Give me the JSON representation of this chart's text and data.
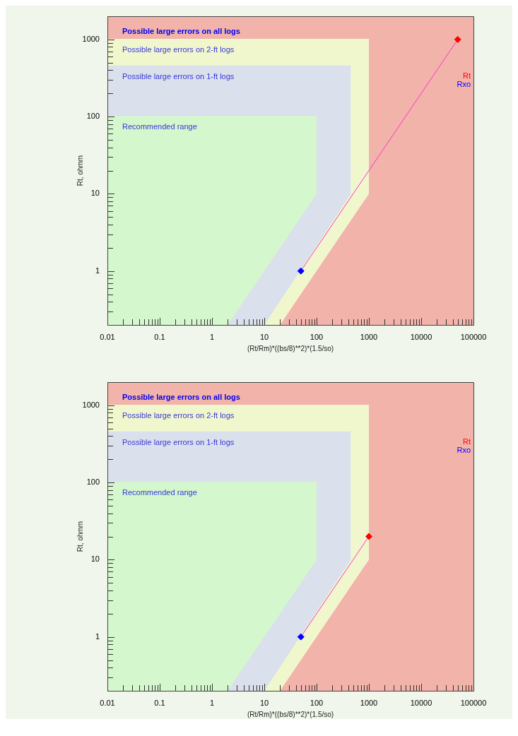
{
  "chart_data": [
    {
      "type": "area",
      "xlabel": "(Rt/Rm)*((bs/8)**2)*(1.5/so)",
      "ylabel": "Rt, ohmm",
      "log": "xy",
      "legend": "top right",
      "marker": "none",
      "xlim": [
        0.01,
        100000
      ],
      "ylim": [
        0.2,
        2000
      ],
      "xticks": [
        0.01,
        {
          "value": 0.02,
          "label": null
        },
        {
          "value": 0.03,
          "label": null
        },
        {
          "value": 0.04,
          "label": null
        },
        {
          "value": 0.05,
          "label": null
        },
        {
          "value": 0.06,
          "label": null
        },
        {
          "value": 0.07,
          "label": null
        },
        {
          "value": 0.08,
          "label": null
        },
        {
          "value": 0.09,
          "label": null
        },
        0.1,
        {
          "value": 0.2,
          "label": null
        },
        {
          "value": 0.3,
          "label": null
        },
        {
          "value": 0.4,
          "label": null
        },
        {
          "value": 0.5,
          "label": null
        },
        {
          "value": 0.6,
          "label": null
        },
        {
          "value": 0.7,
          "label": null
        },
        {
          "value": 0.8,
          "label": null
        },
        {
          "value": 0.9,
          "label": null
        },
        1,
        {
          "value": 2,
          "label": null
        },
        {
          "value": 3,
          "label": null
        },
        {
          "value": 4,
          "label": null
        },
        {
          "value": 5,
          "label": null
        },
        {
          "value": 6,
          "label": null
        },
        {
          "value": 7,
          "label": null
        },
        {
          "value": 8,
          "label": null
        },
        {
          "value": 9,
          "label": null
        },
        10,
        {
          "value": 20,
          "label": null
        },
        {
          "value": 30,
          "label": null
        },
        {
          "value": 40,
          "label": null
        },
        {
          "value": 50,
          "label": null
        },
        {
          "value": 60,
          "label": null
        },
        {
          "value": 70,
          "label": null
        },
        {
          "value": 80,
          "label": null
        },
        {
          "value": 90,
          "label": null
        },
        100,
        {
          "value": 200,
          "label": null
        },
        {
          "value": 300,
          "label": null
        },
        {
          "value": 400,
          "label": null
        },
        {
          "value": 500,
          "label": null
        },
        {
          "value": 600,
          "label": null
        },
        {
          "value": 700,
          "label": null
        },
        {
          "value": 800,
          "label": null
        },
        {
          "value": 900,
          "label": null
        },
        1000,
        {
          "value": 2000,
          "label": null
        },
        {
          "value": 3000,
          "label": null
        },
        {
          "value": 4000,
          "label": null
        },
        {
          "value": 5000,
          "label": null
        },
        {
          "value": 6000,
          "label": null
        },
        {
          "value": 7000,
          "label": null
        },
        {
          "value": 8000,
          "label": null
        },
        {
          "value": 9000,
          "label": null
        },
        10000,
        {
          "value": 20000,
          "label": null
        },
        {
          "value": 30000,
          "label": null
        },
        {
          "value": 40000,
          "label": null
        },
        {
          "value": 50000,
          "label": null
        },
        {
          "value": 60000,
          "label": null
        },
        {
          "value": 70000,
          "label": null
        },
        {
          "value": 80000,
          "label": null
        },
        {
          "value": 90000,
          "label": null
        },
        100000
      ],
      "yticks": [
        {
          "value": 0.2,
          "label": null
        },
        {
          "value": 0.3,
          "label": null
        },
        {
          "value": 0.4,
          "label": null
        },
        {
          "value": 0.5,
          "label": null
        },
        {
          "value": 0.6,
          "label": null
        },
        {
          "value": 0.7,
          "label": null
        },
        {
          "value": 0.8,
          "label": null
        },
        {
          "value": 0.9,
          "label": null
        },
        1,
        {
          "value": 2,
          "label": null
        },
        {
          "value": 3,
          "label": null
        },
        {
          "value": 4,
          "label": null
        },
        {
          "value": 5,
          "label": null
        },
        {
          "value": 6,
          "label": null
        },
        {
          "value": 7,
          "label": null
        },
        {
          "value": 8,
          "label": null
        },
        {
          "value": 9,
          "label": null
        },
        10,
        {
          "value": 20,
          "label": null
        },
        {
          "value": 30,
          "label": null
        },
        {
          "value": 40,
          "label": null
        },
        {
          "value": 50,
          "label": null
        },
        {
          "value": 60,
          "label": null
        },
        {
          "value": 70,
          "label": null
        },
        {
          "value": 80,
          "label": null
        },
        {
          "value": 90,
          "label": null
        },
        100,
        {
          "value": 200,
          "label": null
        },
        {
          "value": 300,
          "label": null
        },
        {
          "value": 400,
          "label": null
        },
        {
          "value": 500,
          "label": null
        },
        {
          "value": 600,
          "label": null
        },
        {
          "value": 700,
          "label": null
        },
        {
          "value": 800,
          "label": null
        },
        {
          "value": 900,
          "label": null
        },
        1000,
        {
          "value": 2000,
          "label": null
        }
      ],
      "series": [
        {
          "name": "Rt",
          "type": "scatter",
          "marker": "diamond",
          "color": "#ff0000",
          "x": [
            50000
          ],
          "values": [
            1000
          ]
        },
        {
          "name": "Rxo",
          "type": "scatter",
          "marker": "diamond",
          "color": "#0000ff",
          "x": [
            50
          ],
          "values": [
            1
          ]
        },
        {
          "type": "line",
          "color": "#ff33cc",
          "x": [
            50,
            50000
          ],
          "values": [
            1,
            1000
          ]
        },
        {
          "name": "Recommended range",
          "type": "line",
          "color": "#d4f7cd",
          "x": [
            0.01,
            2,
            100
          ],
          "values": [
            100,
            100,
            100
          ],
          "upper": [
            100,
            100,
            100
          ],
          "lower": [
            0.2,
            0.2,
            10
          ]
        },
        {
          "name": "Possible large errors on 1-ft logs",
          "type": "line",
          "color": "#dae0ec",
          "x": [
            0.01,
            10,
            450
          ],
          "values": [
            450,
            450,
            450
          ],
          "upper": [
            450,
            450,
            450
          ],
          "lower": [
            0.2,
            0.2,
            10
          ]
        },
        {
          "name": "Possible large errors on 2-ft logs",
          "type": "line",
          "color": "#f1f7cd",
          "x": [
            0.01,
            20,
            1000
          ],
          "values": [
            1000,
            1000,
            1000
          ],
          "upper": [
            1000,
            1000,
            1000
          ],
          "lower": [
            0.2,
            0.2,
            10
          ]
        }
      ],
      "annotations": [
        "Possible large errors on all logs"
      ]
    },
    {
      "type": "area",
      "xlabel": "(Rt/Rm)*((bs/8)**2)*(1.5/so)",
      "ylabel": "Rt, ohmm",
      "log": "xy",
      "legend": "top right",
      "marker": "none",
      "xlim": [
        0.01,
        100000
      ],
      "ylim": [
        0.2,
        2000
      ],
      "xticks": [
        0.01,
        {
          "value": 0.02,
          "label": null
        },
        {
          "value": 0.03,
          "label": null
        },
        {
          "value": 0.04,
          "label": null
        },
        {
          "value": 0.05,
          "label": null
        },
        {
          "value": 0.06,
          "label": null
        },
        {
          "value": 0.07,
          "label": null
        },
        {
          "value": 0.08,
          "label": null
        },
        {
          "value": 0.09,
          "label": null
        },
        0.1,
        {
          "value": 0.2,
          "label": null
        },
        {
          "value": 0.3,
          "label": null
        },
        {
          "value": 0.4,
          "label": null
        },
        {
          "value": 0.5,
          "label": null
        },
        {
          "value": 0.6,
          "label": null
        },
        {
          "value": 0.7,
          "label": null
        },
        {
          "value": 0.8,
          "label": null
        },
        {
          "value": 0.9,
          "label": null
        },
        1,
        {
          "value": 2,
          "label": null
        },
        {
          "value": 3,
          "label": null
        },
        {
          "value": 4,
          "label": null
        },
        {
          "value": 5,
          "label": null
        },
        {
          "value": 6,
          "label": null
        },
        {
          "value": 7,
          "label": null
        },
        {
          "value": 8,
          "label": null
        },
        {
          "value": 9,
          "label": null
        },
        10,
        {
          "value": 20,
          "label": null
        },
        {
          "value": 30,
          "label": null
        },
        {
          "value": 40,
          "label": null
        },
        {
          "value": 50,
          "label": null
        },
        {
          "value": 60,
          "label": null
        },
        {
          "value": 70,
          "label": null
        },
        {
          "value": 80,
          "label": null
        },
        {
          "value": 90,
          "label": null
        },
        100,
        {
          "value": 200,
          "label": null
        },
        {
          "value": 300,
          "label": null
        },
        {
          "value": 400,
          "label": null
        },
        {
          "value": 500,
          "label": null
        },
        {
          "value": 600,
          "label": null
        },
        {
          "value": 700,
          "label": null
        },
        {
          "value": 800,
          "label": null
        },
        {
          "value": 900,
          "label": null
        },
        1000,
        {
          "value": 2000,
          "label": null
        },
        {
          "value": 3000,
          "label": null
        },
        {
          "value": 4000,
          "label": null
        },
        {
          "value": 5000,
          "label": null
        },
        {
          "value": 6000,
          "label": null
        },
        {
          "value": 7000,
          "label": null
        },
        {
          "value": 8000,
          "label": null
        },
        {
          "value": 9000,
          "label": null
        },
        10000,
        {
          "value": 20000,
          "label": null
        },
        {
          "value": 30000,
          "label": null
        },
        {
          "value": 40000,
          "label": null
        },
        {
          "value": 50000,
          "label": null
        },
        {
          "value": 60000,
          "label": null
        },
        {
          "value": 70000,
          "label": null
        },
        {
          "value": 80000,
          "label": null
        },
        {
          "value": 90000,
          "label": null
        },
        100000
      ],
      "yticks": [
        {
          "value": 0.2,
          "label": null
        },
        {
          "value": 0.3,
          "label": null
        },
        {
          "value": 0.4,
          "label": null
        },
        {
          "value": 0.5,
          "label": null
        },
        {
          "value": 0.6,
          "label": null
        },
        {
          "value": 0.7,
          "label": null
        },
        {
          "value": 0.8,
          "label": null
        },
        {
          "value": 0.9,
          "label": null
        },
        1,
        {
          "value": 2,
          "label": null
        },
        {
          "value": 3,
          "label": null
        },
        {
          "value": 4,
          "label": null
        },
        {
          "value": 5,
          "label": null
        },
        {
          "value": 6,
          "label": null
        },
        {
          "value": 7,
          "label": null
        },
        {
          "value": 8,
          "label": null
        },
        {
          "value": 9,
          "label": null
        },
        10,
        {
          "value": 20,
          "label": null
        },
        {
          "value": 30,
          "label": null
        },
        {
          "value": 40,
          "label": null
        },
        {
          "value": 50,
          "label": null
        },
        {
          "value": 60,
          "label": null
        },
        {
          "value": 70,
          "label": null
        },
        {
          "value": 80,
          "label": null
        },
        {
          "value": 90,
          "label": null
        },
        100,
        {
          "value": 200,
          "label": null
        },
        {
          "value": 300,
          "label": null
        },
        {
          "value": 400,
          "label": null
        },
        {
          "value": 500,
          "label": null
        },
        {
          "value": 600,
          "label": null
        },
        {
          "value": 700,
          "label": null
        },
        {
          "value": 800,
          "label": null
        },
        {
          "value": 900,
          "label": null
        },
        1000,
        {
          "value": 2000,
          "label": null
        }
      ],
      "series": [
        {
          "name": "Rt",
          "type": "scatter",
          "marker": "diamond",
          "color": "#ff0000",
          "x": [
            1000
          ],
          "values": [
            20
          ]
        },
        {
          "name": "Rxo",
          "type": "scatter",
          "marker": "diamond",
          "color": "#0000ff",
          "x": [
            50
          ],
          "values": [
            1
          ]
        },
        {
          "type": "line",
          "color": "#ff33cc",
          "x": [
            50,
            1000
          ],
          "values": [
            1,
            20
          ]
        },
        {
          "name": "Recommended range",
          "type": "line",
          "color": "#d4f7cd",
          "x": [
            0.01,
            2,
            100
          ],
          "values": [
            100,
            100,
            100
          ],
          "upper": [
            100,
            100,
            100
          ],
          "lower": [
            0.2,
            0.2,
            10
          ]
        },
        {
          "name": "Possible large errors on 1-ft logs",
          "type": "line",
          "color": "#dae0ec",
          "x": [
            0.01,
            10,
            450
          ],
          "values": [
            450,
            450,
            450
          ],
          "upper": [
            450,
            450,
            450
          ],
          "lower": [
            0.2,
            0.2,
            10
          ]
        },
        {
          "name": "Possible large errors on 2-ft logs",
          "type": "line",
          "color": "#f1f7cd",
          "x": [
            0.01,
            20,
            1000
          ],
          "values": [
            1000,
            1000,
            1000
          ],
          "upper": [
            1000,
            1000,
            1000
          ],
          "lower": [
            0.2,
            0.2,
            10
          ]
        }
      ],
      "annotations": [
        "Possible large errors on all logs"
      ]
    }
  ]
}
